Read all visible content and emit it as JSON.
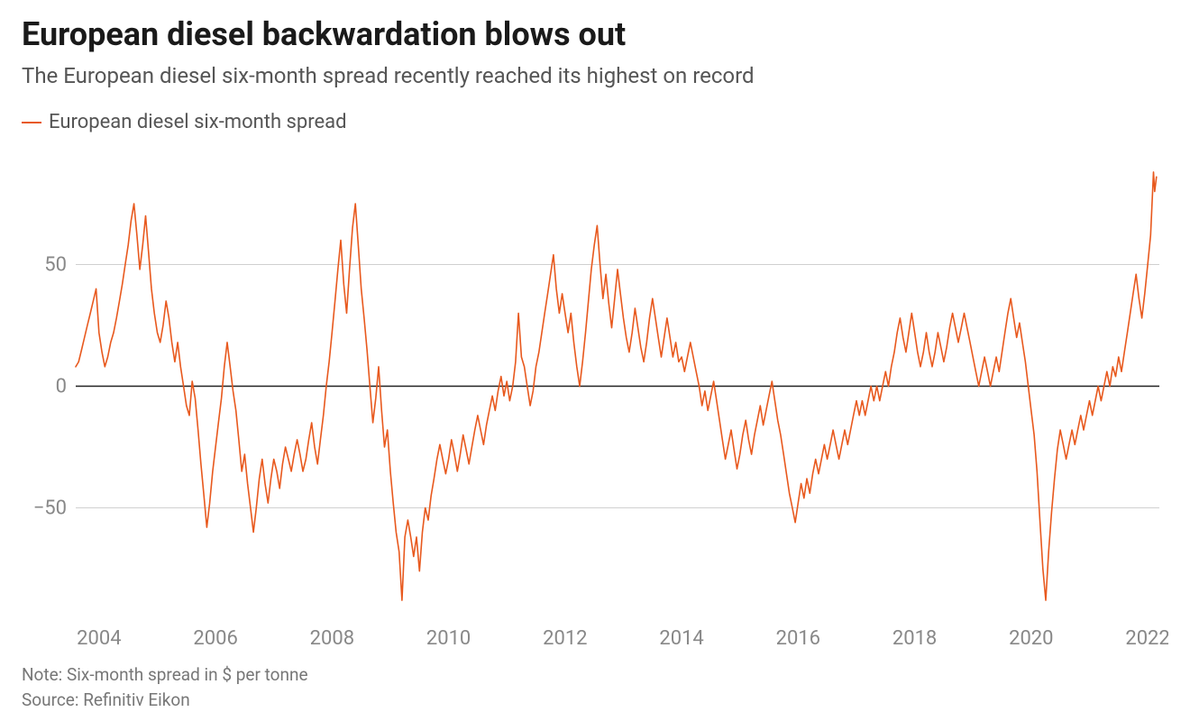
{
  "title": "European diesel backwardation blows out",
  "subtitle": "The European diesel six-month spread recently reached its highest on record",
  "legend": {
    "label": "European diesel six-month spread",
    "color": "#e8591e"
  },
  "note": "Note: Six-month spread in $ per tonne",
  "source": "Source: Refinitiv Eikon",
  "chart": {
    "type": "line",
    "x_domain": [
      2003.6,
      2022.2
    ],
    "y_domain": [
      -95,
      95
    ],
    "x_ticks": [
      2004,
      2006,
      2008,
      2010,
      2012,
      2014,
      2016,
      2018,
      2020,
      2022
    ],
    "y_ticks": [
      -50,
      0,
      50
    ],
    "y_tick_labels": [
      "−50",
      "0",
      "50"
    ],
    "stroke_color": "#e8591e",
    "stroke_width": 1.6,
    "grid_color": "#d0d0d0",
    "zero_line_color": "#222222",
    "axis_text_color": "#888888",
    "axis_font_size": 22,
    "background_color": "#ffffff",
    "data": [
      [
        2003.6,
        8
      ],
      [
        2003.65,
        10
      ],
      [
        2003.7,
        15
      ],
      [
        2003.75,
        20
      ],
      [
        2003.8,
        25
      ],
      [
        2003.85,
        30
      ],
      [
        2003.9,
        35
      ],
      [
        2003.95,
        40
      ],
      [
        2004.0,
        22
      ],
      [
        2004.05,
        14
      ],
      [
        2004.1,
        8
      ],
      [
        2004.15,
        12
      ],
      [
        2004.2,
        18
      ],
      [
        2004.25,
        22
      ],
      [
        2004.3,
        28
      ],
      [
        2004.35,
        35
      ],
      [
        2004.4,
        42
      ],
      [
        2004.45,
        50
      ],
      [
        2004.5,
        58
      ],
      [
        2004.55,
        68
      ],
      [
        2004.6,
        75
      ],
      [
        2004.65,
        62
      ],
      [
        2004.7,
        48
      ],
      [
        2004.75,
        58
      ],
      [
        2004.8,
        70
      ],
      [
        2004.85,
        55
      ],
      [
        2004.9,
        40
      ],
      [
        2004.95,
        30
      ],
      [
        2005.0,
        22
      ],
      [
        2005.05,
        18
      ],
      [
        2005.1,
        25
      ],
      [
        2005.15,
        35
      ],
      [
        2005.2,
        28
      ],
      [
        2005.25,
        18
      ],
      [
        2005.3,
        10
      ],
      [
        2005.35,
        18
      ],
      [
        2005.4,
        8
      ],
      [
        2005.45,
        0
      ],
      [
        2005.5,
        -8
      ],
      [
        2005.55,
        -12
      ],
      [
        2005.6,
        2
      ],
      [
        2005.65,
        -5
      ],
      [
        2005.7,
        -18
      ],
      [
        2005.75,
        -32
      ],
      [
        2005.8,
        -45
      ],
      [
        2005.85,
        -58
      ],
      [
        2005.9,
        -48
      ],
      [
        2005.95,
        -35
      ],
      [
        2006.0,
        -25
      ],
      [
        2006.05,
        -15
      ],
      [
        2006.1,
        -5
      ],
      [
        2006.15,
        8
      ],
      [
        2006.2,
        18
      ],
      [
        2006.25,
        8
      ],
      [
        2006.3,
        -2
      ],
      [
        2006.35,
        -10
      ],
      [
        2006.4,
        -22
      ],
      [
        2006.45,
        -35
      ],
      [
        2006.5,
        -28
      ],
      [
        2006.55,
        -40
      ],
      [
        2006.6,
        -50
      ],
      [
        2006.65,
        -60
      ],
      [
        2006.7,
        -50
      ],
      [
        2006.75,
        -38
      ],
      [
        2006.8,
        -30
      ],
      [
        2006.85,
        -40
      ],
      [
        2006.9,
        -48
      ],
      [
        2006.95,
        -38
      ],
      [
        2007.0,
        -30
      ],
      [
        2007.05,
        -35
      ],
      [
        2007.1,
        -42
      ],
      [
        2007.15,
        -32
      ],
      [
        2007.2,
        -25
      ],
      [
        2007.25,
        -30
      ],
      [
        2007.3,
        -35
      ],
      [
        2007.35,
        -28
      ],
      [
        2007.4,
        -22
      ],
      [
        2007.45,
        -28
      ],
      [
        2007.5,
        -35
      ],
      [
        2007.55,
        -30
      ],
      [
        2007.6,
        -22
      ],
      [
        2007.65,
        -15
      ],
      [
        2007.7,
        -25
      ],
      [
        2007.75,
        -32
      ],
      [
        2007.8,
        -22
      ],
      [
        2007.85,
        -12
      ],
      [
        2007.9,
        0
      ],
      [
        2007.95,
        10
      ],
      [
        2008.0,
        22
      ],
      [
        2008.05,
        35
      ],
      [
        2008.1,
        48
      ],
      [
        2008.15,
        60
      ],
      [
        2008.2,
        42
      ],
      [
        2008.25,
        30
      ],
      [
        2008.3,
        48
      ],
      [
        2008.35,
        65
      ],
      [
        2008.4,
        75
      ],
      [
        2008.45,
        58
      ],
      [
        2008.5,
        40
      ],
      [
        2008.55,
        28
      ],
      [
        2008.6,
        15
      ],
      [
        2008.65,
        0
      ],
      [
        2008.7,
        -15
      ],
      [
        2008.75,
        -5
      ],
      [
        2008.8,
        8
      ],
      [
        2008.85,
        -10
      ],
      [
        2008.9,
        -25
      ],
      [
        2008.95,
        -18
      ],
      [
        2009.0,
        -35
      ],
      [
        2009.05,
        -48
      ],
      [
        2009.1,
        -60
      ],
      [
        2009.15,
        -68
      ],
      [
        2009.2,
        -88
      ],
      [
        2009.25,
        -62
      ],
      [
        2009.3,
        -55
      ],
      [
        2009.35,
        -62
      ],
      [
        2009.4,
        -70
      ],
      [
        2009.45,
        -62
      ],
      [
        2009.5,
        -76
      ],
      [
        2009.55,
        -60
      ],
      [
        2009.6,
        -50
      ],
      [
        2009.65,
        -55
      ],
      [
        2009.7,
        -45
      ],
      [
        2009.75,
        -38
      ],
      [
        2009.8,
        -30
      ],
      [
        2009.85,
        -24
      ],
      [
        2009.9,
        -30
      ],
      [
        2009.95,
        -36
      ],
      [
        2010.0,
        -30
      ],
      [
        2010.05,
        -22
      ],
      [
        2010.1,
        -28
      ],
      [
        2010.15,
        -35
      ],
      [
        2010.2,
        -28
      ],
      [
        2010.25,
        -20
      ],
      [
        2010.3,
        -26
      ],
      [
        2010.35,
        -32
      ],
      [
        2010.4,
        -25
      ],
      [
        2010.45,
        -18
      ],
      [
        2010.5,
        -12
      ],
      [
        2010.55,
        -18
      ],
      [
        2010.6,
        -24
      ],
      [
        2010.65,
        -16
      ],
      [
        2010.7,
        -10
      ],
      [
        2010.75,
        -4
      ],
      [
        2010.8,
        -10
      ],
      [
        2010.85,
        -2
      ],
      [
        2010.9,
        4
      ],
      [
        2010.95,
        -4
      ],
      [
        2011.0,
        2
      ],
      [
        2011.05,
        -6
      ],
      [
        2011.1,
        0
      ],
      [
        2011.15,
        10
      ],
      [
        2011.2,
        30
      ],
      [
        2011.25,
        12
      ],
      [
        2011.3,
        8
      ],
      [
        2011.35,
        0
      ],
      [
        2011.4,
        -8
      ],
      [
        2011.45,
        -2
      ],
      [
        2011.5,
        8
      ],
      [
        2011.55,
        14
      ],
      [
        2011.6,
        22
      ],
      [
        2011.65,
        30
      ],
      [
        2011.7,
        38
      ],
      [
        2011.75,
        46
      ],
      [
        2011.8,
        54
      ],
      [
        2011.85,
        40
      ],
      [
        2011.9,
        30
      ],
      [
        2011.95,
        38
      ],
      [
        2012.0,
        30
      ],
      [
        2012.05,
        22
      ],
      [
        2012.1,
        30
      ],
      [
        2012.15,
        18
      ],
      [
        2012.2,
        8
      ],
      [
        2012.25,
        0
      ],
      [
        2012.3,
        10
      ],
      [
        2012.35,
        22
      ],
      [
        2012.4,
        35
      ],
      [
        2012.45,
        48
      ],
      [
        2012.5,
        58
      ],
      [
        2012.55,
        66
      ],
      [
        2012.6,
        50
      ],
      [
        2012.65,
        36
      ],
      [
        2012.7,
        46
      ],
      [
        2012.75,
        34
      ],
      [
        2012.8,
        24
      ],
      [
        2012.85,
        36
      ],
      [
        2012.9,
        48
      ],
      [
        2012.95,
        38
      ],
      [
        2013.0,
        28
      ],
      [
        2013.05,
        20
      ],
      [
        2013.1,
        14
      ],
      [
        2013.15,
        22
      ],
      [
        2013.2,
        32
      ],
      [
        2013.25,
        24
      ],
      [
        2013.3,
        16
      ],
      [
        2013.35,
        10
      ],
      [
        2013.4,
        18
      ],
      [
        2013.45,
        28
      ],
      [
        2013.5,
        36
      ],
      [
        2013.55,
        28
      ],
      [
        2013.6,
        20
      ],
      [
        2013.65,
        12
      ],
      [
        2013.7,
        20
      ],
      [
        2013.75,
        28
      ],
      [
        2013.8,
        20
      ],
      [
        2013.85,
        12
      ],
      [
        2013.9,
        18
      ],
      [
        2013.95,
        10
      ],
      [
        2014.0,
        12
      ],
      [
        2014.05,
        6
      ],
      [
        2014.1,
        12
      ],
      [
        2014.15,
        18
      ],
      [
        2014.2,
        12
      ],
      [
        2014.25,
        6
      ],
      [
        2014.3,
        0
      ],
      [
        2014.35,
        -8
      ],
      [
        2014.4,
        -2
      ],
      [
        2014.45,
        -10
      ],
      [
        2014.5,
        -4
      ],
      [
        2014.55,
        2
      ],
      [
        2014.6,
        -6
      ],
      [
        2014.65,
        -14
      ],
      [
        2014.7,
        -22
      ],
      [
        2014.75,
        -30
      ],
      [
        2014.8,
        -24
      ],
      [
        2014.85,
        -18
      ],
      [
        2014.9,
        -26
      ],
      [
        2014.95,
        -34
      ],
      [
        2015.0,
        -28
      ],
      [
        2015.05,
        -20
      ],
      [
        2015.1,
        -14
      ],
      [
        2015.15,
        -22
      ],
      [
        2015.2,
        -28
      ],
      [
        2015.25,
        -20
      ],
      [
        2015.3,
        -14
      ],
      [
        2015.35,
        -8
      ],
      [
        2015.4,
        -16
      ],
      [
        2015.45,
        -10
      ],
      [
        2015.5,
        -4
      ],
      [
        2015.55,
        2
      ],
      [
        2015.6,
        -6
      ],
      [
        2015.65,
        -14
      ],
      [
        2015.7,
        -20
      ],
      [
        2015.75,
        -28
      ],
      [
        2015.8,
        -36
      ],
      [
        2015.85,
        -44
      ],
      [
        2015.9,
        -50
      ],
      [
        2015.95,
        -56
      ],
      [
        2016.0,
        -48
      ],
      [
        2016.05,
        -40
      ],
      [
        2016.1,
        -46
      ],
      [
        2016.15,
        -38
      ],
      [
        2016.2,
        -44
      ],
      [
        2016.25,
        -36
      ],
      [
        2016.3,
        -30
      ],
      [
        2016.35,
        -36
      ],
      [
        2016.4,
        -30
      ],
      [
        2016.45,
        -24
      ],
      [
        2016.5,
        -30
      ],
      [
        2016.55,
        -24
      ],
      [
        2016.6,
        -18
      ],
      [
        2016.65,
        -24
      ],
      [
        2016.7,
        -30
      ],
      [
        2016.75,
        -24
      ],
      [
        2016.8,
        -18
      ],
      [
        2016.85,
        -24
      ],
      [
        2016.9,
        -18
      ],
      [
        2016.95,
        -12
      ],
      [
        2017.0,
        -6
      ],
      [
        2017.05,
        -12
      ],
      [
        2017.1,
        -6
      ],
      [
        2017.15,
        -12
      ],
      [
        2017.2,
        -6
      ],
      [
        2017.25,
        0
      ],
      [
        2017.3,
        -6
      ],
      [
        2017.35,
        0
      ],
      [
        2017.4,
        -6
      ],
      [
        2017.45,
        0
      ],
      [
        2017.5,
        6
      ],
      [
        2017.55,
        0
      ],
      [
        2017.6,
        8
      ],
      [
        2017.65,
        14
      ],
      [
        2017.7,
        22
      ],
      [
        2017.75,
        28
      ],
      [
        2017.8,
        20
      ],
      [
        2017.85,
        14
      ],
      [
        2017.9,
        22
      ],
      [
        2017.95,
        30
      ],
      [
        2018.0,
        22
      ],
      [
        2018.05,
        14
      ],
      [
        2018.1,
        8
      ],
      [
        2018.15,
        14
      ],
      [
        2018.2,
        22
      ],
      [
        2018.25,
        14
      ],
      [
        2018.3,
        8
      ],
      [
        2018.35,
        14
      ],
      [
        2018.4,
        22
      ],
      [
        2018.45,
        16
      ],
      [
        2018.5,
        10
      ],
      [
        2018.55,
        16
      ],
      [
        2018.6,
        24
      ],
      [
        2018.65,
        30
      ],
      [
        2018.7,
        24
      ],
      [
        2018.75,
        18
      ],
      [
        2018.8,
        24
      ],
      [
        2018.85,
        30
      ],
      [
        2018.9,
        24
      ],
      [
        2018.95,
        18
      ],
      [
        2019.0,
        12
      ],
      [
        2019.05,
        6
      ],
      [
        2019.1,
        0
      ],
      [
        2019.15,
        6
      ],
      [
        2019.2,
        12
      ],
      [
        2019.25,
        6
      ],
      [
        2019.3,
        0
      ],
      [
        2019.35,
        6
      ],
      [
        2019.4,
        12
      ],
      [
        2019.45,
        6
      ],
      [
        2019.5,
        14
      ],
      [
        2019.55,
        22
      ],
      [
        2019.6,
        30
      ],
      [
        2019.65,
        36
      ],
      [
        2019.7,
        28
      ],
      [
        2019.75,
        20
      ],
      [
        2019.8,
        26
      ],
      [
        2019.85,
        18
      ],
      [
        2019.9,
        10
      ],
      [
        2019.95,
        0
      ],
      [
        2020.0,
        -10
      ],
      [
        2020.05,
        -20
      ],
      [
        2020.1,
        -35
      ],
      [
        2020.15,
        -55
      ],
      [
        2020.2,
        -75
      ],
      [
        2020.25,
        -88
      ],
      [
        2020.3,
        -68
      ],
      [
        2020.35,
        -52
      ],
      [
        2020.4,
        -38
      ],
      [
        2020.45,
        -26
      ],
      [
        2020.5,
        -18
      ],
      [
        2020.55,
        -24
      ],
      [
        2020.6,
        -30
      ],
      [
        2020.65,
        -24
      ],
      [
        2020.7,
        -18
      ],
      [
        2020.75,
        -24
      ],
      [
        2020.8,
        -18
      ],
      [
        2020.85,
        -12
      ],
      [
        2020.9,
        -18
      ],
      [
        2020.95,
        -12
      ],
      [
        2021.0,
        -6
      ],
      [
        2021.05,
        -12
      ],
      [
        2021.1,
        -6
      ],
      [
        2021.15,
        0
      ],
      [
        2021.2,
        -6
      ],
      [
        2021.25,
        0
      ],
      [
        2021.3,
        6
      ],
      [
        2021.35,
        0
      ],
      [
        2021.4,
        8
      ],
      [
        2021.45,
        4
      ],
      [
        2021.5,
        12
      ],
      [
        2021.55,
        6
      ],
      [
        2021.6,
        14
      ],
      [
        2021.65,
        22
      ],
      [
        2021.7,
        30
      ],
      [
        2021.75,
        38
      ],
      [
        2021.8,
        46
      ],
      [
        2021.85,
        36
      ],
      [
        2021.9,
        28
      ],
      [
        2021.95,
        38
      ],
      [
        2022.0,
        50
      ],
      [
        2022.05,
        62
      ],
      [
        2022.1,
        88
      ],
      [
        2022.12,
        80
      ],
      [
        2022.15,
        86
      ]
    ]
  }
}
